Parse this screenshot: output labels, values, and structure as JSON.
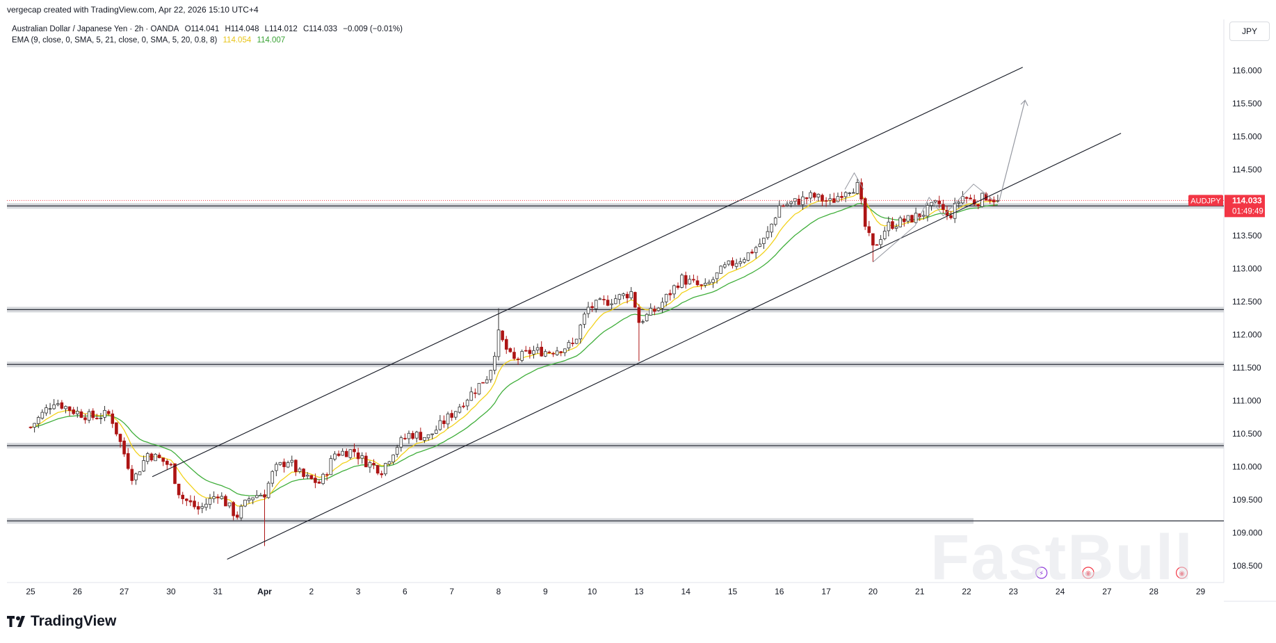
{
  "header": {
    "caption": "vergecap created with TradingView.com, Apr 22, 2026 15:10 UTC+4",
    "symbol_title": "Australian Dollar / Japanese Yen · 2h · OANDA",
    "open": "O114.041",
    "high": "H114.048",
    "low": "L114.012",
    "close": "C114.033",
    "change": "−0.009 (−0.01%)",
    "ema_label": "EMA (9, close, 0, SMA, 5, 21, close, 0, SMA, 5, 20, 0.8, 8)",
    "ema_fast_value": "114.054",
    "ema_slow_value": "114.007",
    "currency": "JPY"
  },
  "price_tag": {
    "symbol": "AUDJPY",
    "price": "114.033",
    "countdown": "01:49:49"
  },
  "footer": {
    "brand": "TradingView"
  },
  "watermark": "FastBull",
  "chart_data": {
    "type": "candlestick",
    "symbol": "AUDJPY",
    "timeframe": "2h",
    "currency": "JPY",
    "y_ticks": [
      116.0,
      115.5,
      115.0,
      114.5,
      114.0,
      113.5,
      113.0,
      112.5,
      112.0,
      111.5,
      111.0,
      110.5,
      110.0,
      109.5,
      109.0,
      108.5
    ],
    "ylim": [
      108.2,
      116.6
    ],
    "x_ticks": [
      "25",
      "26",
      "27",
      "30",
      "31",
      "Apr",
      "2",
      "3",
      "6",
      "7",
      "8",
      "9",
      "10",
      "13",
      "14",
      "15",
      "16",
      "17",
      "20",
      "21",
      "22",
      "23",
      "24",
      "27",
      "28",
      "29"
    ],
    "price_path": [
      [
        0,
        110.6
      ],
      [
        0.5,
        111.0
      ],
      [
        0.9,
        110.85
      ],
      [
        1.3,
        110.75
      ],
      [
        1.7,
        110.8
      ],
      [
        2.0,
        110.2
      ],
      [
        2.2,
        109.8
      ],
      [
        2.5,
        110.2
      ],
      [
        2.8,
        110.1
      ],
      [
        3.0,
        110.0
      ],
      [
        3.2,
        109.55
      ],
      [
        3.6,
        109.35
      ],
      [
        4.0,
        109.6
      ],
      [
        4.4,
        109.25
      ],
      [
        4.7,
        109.55
      ],
      [
        5.0,
        109.6
      ],
      [
        5.2,
        109.95
      ],
      [
        5.5,
        110.1
      ],
      [
        5.8,
        109.85
      ],
      [
        6.2,
        109.75
      ],
      [
        6.5,
        110.2
      ],
      [
        6.9,
        110.25
      ],
      [
        7.1,
        110.1
      ],
      [
        7.5,
        109.95
      ],
      [
        7.8,
        110.3
      ],
      [
        8.1,
        110.5
      ],
      [
        8.5,
        110.45
      ],
      [
        9.0,
        110.8
      ],
      [
        9.8,
        111.4
      ],
      [
        10.0,
        112.0
      ],
      [
        10.3,
        111.6
      ],
      [
        10.7,
        111.75
      ],
      [
        11.1,
        111.75
      ],
      [
        11.6,
        111.85
      ],
      [
        11.9,
        112.4
      ],
      [
        12.3,
        112.5
      ],
      [
        12.7,
        112.6
      ],
      [
        12.85,
        112.65
      ],
      [
        13.0,
        112.2
      ],
      [
        13.4,
        112.4
      ],
      [
        13.9,
        112.85
      ],
      [
        14.4,
        112.7
      ],
      [
        14.8,
        113.0
      ],
      [
        15.3,
        113.2
      ],
      [
        15.7,
        113.45
      ],
      [
        16.0,
        113.95
      ],
      [
        16.3,
        114.0
      ],
      [
        16.7,
        114.1
      ],
      [
        17.1,
        114.0
      ],
      [
        17.4,
        114.2
      ],
      [
        17.7,
        114.25
      ],
      [
        17.8,
        113.7
      ],
      [
        18.0,
        113.3
      ],
      [
        18.3,
        113.65
      ],
      [
        18.8,
        113.75
      ],
      [
        19.1,
        113.85
      ],
      [
        19.4,
        114.0
      ],
      [
        19.6,
        113.75
      ],
      [
        19.9,
        114.1
      ],
      [
        20.2,
        114.0
      ],
      [
        20.4,
        114.1
      ],
      [
        20.7,
        114.033
      ]
    ],
    "support_lines": [
      113.95,
      112.38,
      111.55,
      110.32,
      109.18
    ],
    "channel_upper": [
      [
        2.6,
        109.85
      ],
      [
        21.2,
        116.05
      ]
    ],
    "channel_lower": [
      [
        4.2,
        108.6
      ],
      [
        23.3,
        115.05
      ]
    ],
    "projection_arrow": [
      [
        20.7,
        114.033
      ],
      [
        21.25,
        115.55
      ]
    ],
    "ema_fast_last": 114.054,
    "ema_slow_last": 114.007,
    "last_price": 114.033,
    "colors": {
      "up": "#2f2f2f",
      "down": "#ad1414",
      "ema_fast": "#f2d21a",
      "ema_slow": "#3fae3a",
      "price_tag": "#f23645",
      "last_price_line": "#f23645"
    }
  }
}
